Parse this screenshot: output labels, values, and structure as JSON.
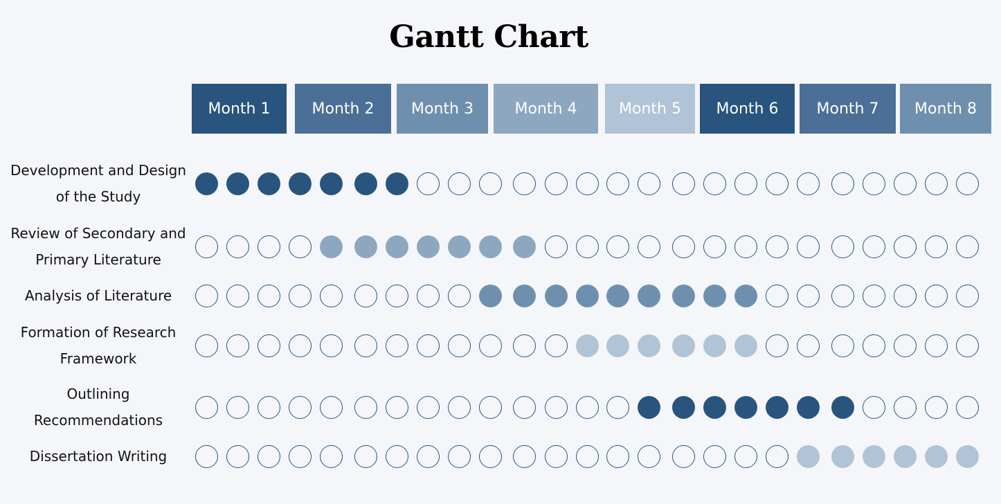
{
  "chart_data": {
    "type": "gantt",
    "title": "Gantt Chart",
    "months": [
      {
        "label": "Month 1",
        "color": "#28547e"
      },
      {
        "label": "Month 2",
        "color": "#4b6f96"
      },
      {
        "label": "Month 3",
        "color": "#6f8fae"
      },
      {
        "label": "Month 4",
        "color": "#8ea7c0"
      },
      {
        "label": "Month 5",
        "color": "#b1c3d6"
      },
      {
        "label": "Month 6",
        "color": "#28547e"
      },
      {
        "label": "Month 7",
        "color": "#4b6f96"
      },
      {
        "label": "Month 8",
        "color": "#6f8fae"
      }
    ],
    "periods_total": 25,
    "tasks": [
      {
        "label": "Development and Design of the Study",
        "lines": [
          "Development and Design",
          "of the Study"
        ],
        "start": 1,
        "end": 7,
        "color": "#28547e"
      },
      {
        "label": "Review of Secondary and Primary Literature",
        "lines": [
          "Review of Secondary and",
          "Primary Literature"
        ],
        "start": 5,
        "end": 11,
        "color": "#8ea7c0"
      },
      {
        "label": "Analysis of Literature",
        "lines": [
          "Analysis of Literature"
        ],
        "start": 10,
        "end": 18,
        "color": "#6f8fae"
      },
      {
        "label": "Formation of Research Framework",
        "lines": [
          "Formation of Research",
          "Framework"
        ],
        "start": 13,
        "end": 18,
        "color": "#b1c3d6"
      },
      {
        "label": "Outlining Recommendations",
        "lines": [
          "Outlining",
          "Recommendations"
        ],
        "start": 15,
        "end": 21,
        "color": "#28547e"
      },
      {
        "label": "Dissertation Writing",
        "lines": [
          "Dissertation Writing"
        ],
        "start": 20,
        "end": 25,
        "color": "#b1c3d6"
      }
    ],
    "empty_dot_border": "#2a5580",
    "background": "#f4f6f9"
  }
}
